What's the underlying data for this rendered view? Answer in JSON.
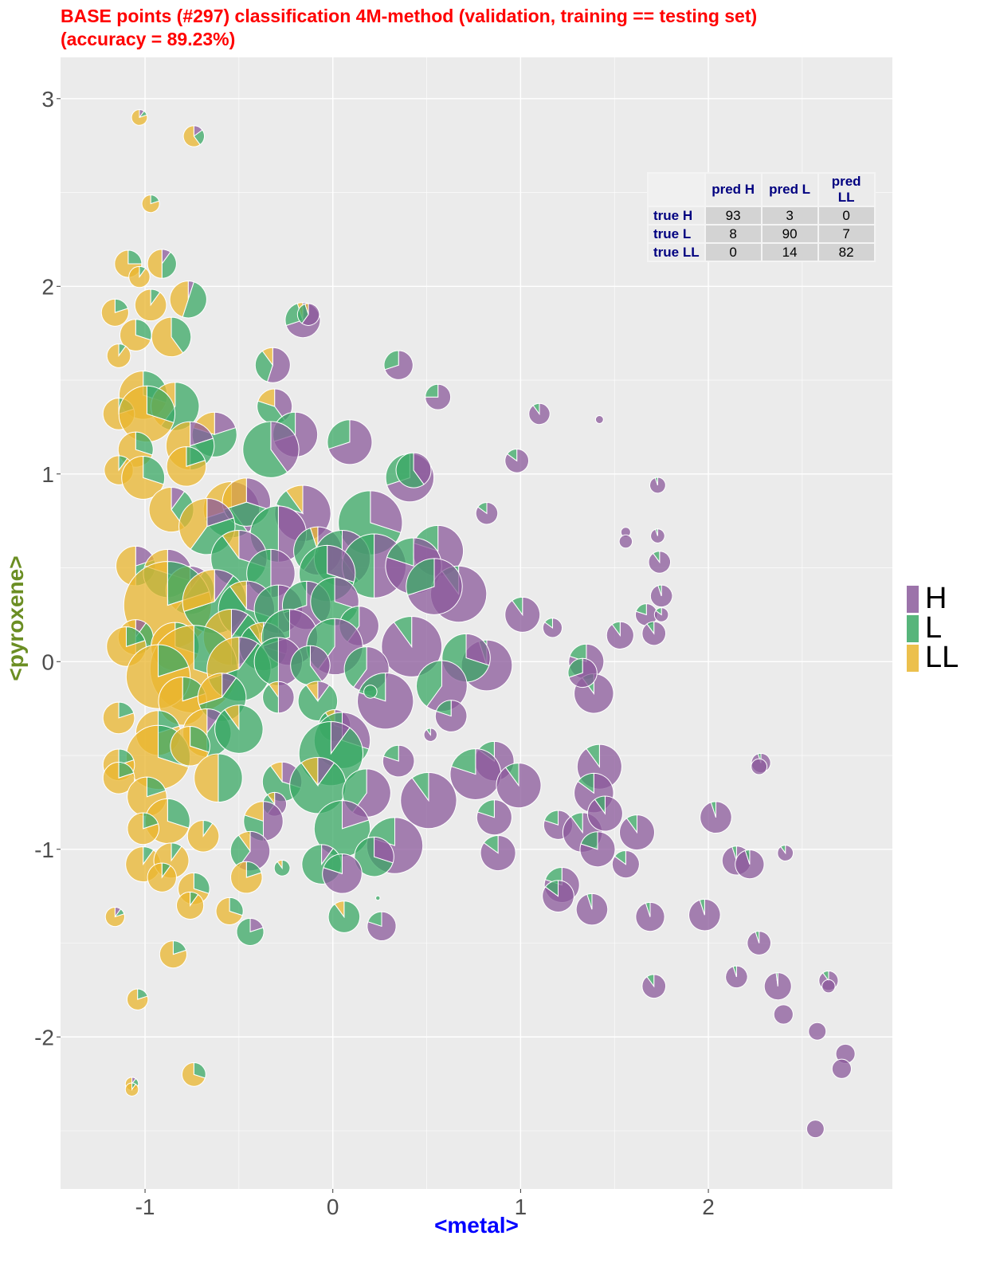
{
  "title": "BASE points (#297) classification 4M-method (validation, training == testing set)\n(accuracy = 89.23%)",
  "confusion_table": {
    "col_headers": [
      "pred H",
      "pred L",
      "pred LL"
    ],
    "rows": [
      {
        "label": "true H",
        "values": [
          "93",
          "3",
          "0"
        ]
      },
      {
        "label": "true L",
        "values": [
          "8",
          "90",
          "7"
        ]
      },
      {
        "label": "true LL",
        "values": [
          "0",
          "14",
          "82"
        ]
      }
    ]
  },
  "legend": {
    "items": [
      {
        "label": "H",
        "color": "#8b5a9b"
      },
      {
        "label": "L",
        "color": "#3aa864"
      },
      {
        "label": "LL",
        "color": "#e9b52e"
      }
    ]
  },
  "chart_data": {
    "type": "scatter",
    "marker": "pie",
    "pie_order": [
      "H",
      "L",
      "LL"
    ],
    "xlabel": "<metal>",
    "ylabel": "<pyroxene>",
    "xlim": [
      -1.45,
      2.98
    ],
    "ylim": [
      -2.81,
      3.22
    ],
    "xticks": [
      -1,
      0,
      1,
      2
    ],
    "yticks": [
      -2,
      -1,
      0,
      1,
      2,
      3
    ],
    "grid": true,
    "legend_position": "right",
    "columns": [
      "metal",
      "pyroxene",
      "size",
      "p_H",
      "p_L",
      "p_LL"
    ],
    "points": [
      [
        -1.03,
        2.9,
        0.18,
        0.1,
        0.1,
        0.8
      ],
      [
        -0.74,
        2.8,
        0.24,
        0.15,
        0.25,
        0.6
      ],
      [
        -0.97,
        2.44,
        0.2,
        0,
        0.2,
        0.8
      ],
      [
        -1.09,
        2.12,
        0.31,
        0,
        0.25,
        0.75
      ],
      [
        -0.91,
        2.12,
        0.33,
        0.1,
        0.4,
        0.5
      ],
      [
        -1.03,
        2.05,
        0.24,
        0,
        0.1,
        0.9
      ],
      [
        -0.77,
        1.93,
        0.42,
        0.05,
        0.5,
        0.45
      ],
      [
        -1.16,
        1.86,
        0.31,
        0,
        0.2,
        0.8
      ],
      [
        -0.97,
        1.9,
        0.36,
        0,
        0.1,
        0.9
      ],
      [
        -0.16,
        1.82,
        0.4,
        0.7,
        0.25,
        0.05
      ],
      [
        -0.13,
        1.85,
        0.25,
        0.6,
        0.35,
        0.05
      ],
      [
        -0.86,
        1.73,
        0.45,
        0,
        0.4,
        0.6
      ],
      [
        -1.05,
        1.74,
        0.36,
        0,
        0.3,
        0.7
      ],
      [
        -1.14,
        1.63,
        0.27,
        0,
        0.1,
        0.9
      ],
      [
        -0.32,
        1.58,
        0.4,
        0.55,
        0.35,
        0.1
      ],
      [
        0.35,
        1.58,
        0.33,
        0.7,
        0.3,
        0
      ],
      [
        -1.01,
        1.42,
        0.55,
        0,
        0.3,
        0.7
      ],
      [
        -0.84,
        1.36,
        0.55,
        0,
        0.6,
        0.4
      ],
      [
        -0.31,
        1.36,
        0.4,
        0.4,
        0.4,
        0.2
      ],
      [
        -1.14,
        1.32,
        0.36,
        0,
        0.2,
        0.8
      ],
      [
        0.56,
        1.41,
        0.29,
        0.75,
        0.25,
        0
      ],
      [
        -0.63,
        1.21,
        0.51,
        0.2,
        0.6,
        0.2
      ],
      [
        -0.99,
        1.32,
        0.64,
        0,
        0.3,
        0.7
      ],
      [
        -0.2,
        1.21,
        0.51,
        0.7,
        0.3,
        0
      ],
      [
        0.09,
        1.17,
        0.51,
        0.7,
        0.3,
        0
      ],
      [
        1.1,
        1.32,
        0.24,
        0.9,
        0.1,
        0
      ],
      [
        1.42,
        1.29,
        0.09,
        1,
        0,
        0
      ],
      [
        -1.05,
        1.13,
        0.4,
        0,
        0.3,
        0.7
      ],
      [
        -0.76,
        1.15,
        0.55,
        0.2,
        0.3,
        0.5
      ],
      [
        -0.33,
        1.13,
        0.64,
        0.4,
        0.6,
        0
      ],
      [
        0.98,
        1.07,
        0.27,
        0.85,
        0.15,
        0
      ],
      [
        -1.14,
        1.02,
        0.33,
        0,
        0.1,
        0.9
      ],
      [
        -1.01,
        0.98,
        0.49,
        0,
        0.3,
        0.7
      ],
      [
        0.41,
        0.98,
        0.55,
        0.7,
        0.3,
        0
      ],
      [
        0.43,
        1.02,
        0.4,
        0.4,
        0.6,
        0
      ],
      [
        -0.78,
        1.04,
        0.45,
        0,
        0.2,
        0.8
      ],
      [
        1.73,
        0.94,
        0.18,
        0.95,
        0.05,
        0
      ],
      [
        -0.86,
        0.81,
        0.51,
        0.1,
        0.3,
        0.6
      ],
      [
        -0.54,
        0.81,
        0.64,
        0.4,
        0.3,
        0.3
      ],
      [
        -0.46,
        0.85,
        0.55,
        0.3,
        0.4,
        0.3
      ],
      [
        -0.16,
        0.79,
        0.64,
        0.8,
        0.1,
        0.1
      ],
      [
        0.82,
        0.79,
        0.25,
        0.85,
        0.15,
        0
      ],
      [
        0.2,
        0.74,
        0.73,
        0.3,
        0.7,
        0
      ],
      [
        -0.67,
        0.72,
        0.64,
        0.2,
        0.4,
        0.4
      ],
      [
        1.56,
        0.69,
        0.11,
        1,
        0,
        0
      ],
      [
        1.56,
        0.64,
        0.15,
        1,
        0,
        0
      ],
      [
        1.73,
        0.67,
        0.16,
        0.95,
        0.05,
        0
      ],
      [
        -0.29,
        0.68,
        0.64,
        0.5,
        0.5,
        0
      ],
      [
        -0.08,
        0.59,
        0.55,
        0.6,
        0.35,
        0.05
      ],
      [
        0.56,
        0.59,
        0.58,
        0.8,
        0.2,
        0
      ],
      [
        -1.05,
        0.51,
        0.45,
        0.2,
        0.3,
        0.5
      ],
      [
        -0.88,
        0.47,
        0.55,
        0.3,
        0.5,
        0.2
      ],
      [
        -0.76,
        0.38,
        0.55,
        0.1,
        0.5,
        0.4
      ],
      [
        -0.5,
        0.55,
        0.64,
        0.3,
        0.6,
        0.1
      ],
      [
        -0.33,
        0.47,
        0.55,
        0.5,
        0.5,
        0
      ],
      [
        0.05,
        0.55,
        0.64,
        0.4,
        0.6,
        0
      ],
      [
        0.22,
        0.51,
        0.73,
        0.5,
        0.5,
        0
      ],
      [
        0.43,
        0.51,
        0.64,
        0.8,
        0.2,
        0
      ],
      [
        0.67,
        0.36,
        0.64,
        0.9,
        0.1,
        0
      ],
      [
        0.54,
        0.4,
        0.64,
        0.7,
        0.3,
        0
      ],
      [
        -0.03,
        0.47,
        0.64,
        0.3,
        0.7,
        0
      ],
      [
        1.74,
        0.53,
        0.25,
        0.9,
        0.1,
        0
      ],
      [
        -0.88,
        0.3,
        1.0,
        0,
        0.2,
        0.8
      ],
      [
        -0.63,
        0.32,
        0.73,
        0.1,
        0.6,
        0.3
      ],
      [
        -0.46,
        0.28,
        0.64,
        0.3,
        0.6,
        0.1
      ],
      [
        -0.29,
        0.28,
        0.55,
        0.5,
        0.5,
        0
      ],
      [
        -0.14,
        0.3,
        0.55,
        0.7,
        0.3,
        0
      ],
      [
        0.01,
        0.32,
        0.55,
        0.3,
        0.7,
        0
      ],
      [
        0.14,
        0.19,
        0.45,
        0.6,
        0.4,
        0
      ],
      [
        1.01,
        0.25,
        0.4,
        0.9,
        0.1,
        0
      ],
      [
        1.17,
        0.18,
        0.22,
        0.85,
        0.15,
        0
      ],
      [
        1.75,
        0.35,
        0.25,
        0.95,
        0.05,
        0
      ],
      [
        1.67,
        0.25,
        0.25,
        0.8,
        0.2,
        0
      ],
      [
        1.75,
        0.25,
        0.16,
        0.85,
        0.15,
        0
      ],
      [
        1.71,
        0.15,
        0.27,
        0.9,
        0.1,
        0
      ],
      [
        1.53,
        0.14,
        0.31,
        0.9,
        0.1,
        0
      ],
      [
        -1.05,
        0.13,
        0.4,
        0.1,
        0.4,
        0.5
      ],
      [
        -1.1,
        0.08,
        0.45,
        0,
        0.2,
        0.8
      ],
      [
        -0.84,
        0.08,
        0.55,
        0,
        0.3,
        0.7
      ],
      [
        -0.54,
        0.13,
        0.64,
        0.1,
        0.4,
        0.5
      ],
      [
        -0.37,
        0.08,
        0.55,
        0.3,
        0.6,
        0.1
      ],
      [
        -0.23,
        0.13,
        0.64,
        0.7,
        0.3,
        0
      ],
      [
        0.01,
        0.08,
        0.64,
        0.6,
        0.4,
        0
      ],
      [
        0.42,
        0.08,
        0.69,
        0.9,
        0.1,
        0
      ],
      [
        0.82,
        -0.02,
        0.58,
        0.95,
        0.05,
        0
      ],
      [
        0.71,
        0.02,
        0.55,
        0.3,
        0.7,
        0
      ],
      [
        1.35,
        0.0,
        0.4,
        0.8,
        0.2,
        0
      ],
      [
        -0.74,
        -0.04,
        1.0,
        0,
        0.3,
        0.7
      ],
      [
        -0.93,
        -0.08,
        0.73,
        0,
        0.2,
        0.8
      ],
      [
        -0.5,
        -0.04,
        0.73,
        0.1,
        0.6,
        0.3
      ],
      [
        -0.29,
        0.0,
        0.55,
        0.5,
        0.5,
        0
      ],
      [
        -0.12,
        -0.02,
        0.45,
        0.4,
        0.6,
        0
      ],
      [
        0.18,
        -0.04,
        0.51,
        0.6,
        0.4,
        0
      ],
      [
        0.58,
        -0.13,
        0.58,
        0.6,
        0.4,
        0
      ],
      [
        1.39,
        -0.17,
        0.45,
        0.9,
        0.1,
        0
      ],
      [
        1.33,
        -0.06,
        0.33,
        0.7,
        0.3,
        0
      ],
      [
        -1.14,
        -0.3,
        0.36,
        0,
        0.2,
        0.8
      ],
      [
        -0.8,
        -0.21,
        0.55,
        0,
        0.2,
        0.8
      ],
      [
        -0.59,
        -0.19,
        0.55,
        0.1,
        0.6,
        0.3
      ],
      [
        -0.29,
        -0.19,
        0.36,
        0.5,
        0.4,
        0.1
      ],
      [
        -0.08,
        -0.21,
        0.45,
        0.1,
        0.8,
        0.1
      ],
      [
        0.28,
        -0.21,
        0.64,
        0.8,
        0.2,
        0
      ],
      [
        0.63,
        -0.29,
        0.36,
        0.8,
        0.2,
        0
      ],
      [
        0.2,
        -0.16,
        0.15,
        0,
        1,
        0
      ],
      [
        -0.93,
        -0.38,
        0.51,
        0,
        0.2,
        0.8
      ],
      [
        -0.67,
        -0.38,
        0.55,
        0.1,
        0.4,
        0.5
      ],
      [
        -0.5,
        -0.36,
        0.55,
        0,
        0.9,
        0.1
      ],
      [
        0.01,
        -0.34,
        0.36,
        0.3,
        0.6,
        0.1
      ],
      [
        0.05,
        -0.42,
        0.64,
        0.3,
        0.7,
        0
      ],
      [
        0.52,
        -0.39,
        0.15,
        0.9,
        0.1,
        0
      ],
      [
        -0.93,
        -0.51,
        0.73,
        0,
        0.3,
        0.7
      ],
      [
        -0.76,
        -0.45,
        0.45,
        0,
        0.3,
        0.7
      ],
      [
        -0.61,
        -0.62,
        0.55,
        0,
        0.5,
        0.5
      ],
      [
        -0.01,
        -0.49,
        0.73,
        0.1,
        0.9,
        0
      ],
      [
        0.35,
        -0.53,
        0.36,
        0.8,
        0.2,
        0
      ],
      [
        1.42,
        -0.56,
        0.51,
        0.9,
        0.1,
        0
      ],
      [
        0.86,
        -0.53,
        0.45,
        0.85,
        0.15,
        0
      ],
      [
        -1.14,
        -0.55,
        0.36,
        0,
        0.2,
        0.8
      ],
      [
        -1.14,
        -0.62,
        0.36,
        0,
        0.2,
        0.8
      ],
      [
        -0.27,
        -0.64,
        0.45,
        0.3,
        0.6,
        0.1
      ],
      [
        -0.08,
        -0.66,
        0.64,
        0.1,
        0.8,
        0.1
      ],
      [
        0.18,
        -0.7,
        0.55,
        0.6,
        0.4,
        0
      ],
      [
        0.51,
        -0.74,
        0.64,
        0.9,
        0.1,
        0
      ],
      [
        0.76,
        -0.6,
        0.58,
        0.8,
        0.2,
        0
      ],
      [
        0.99,
        -0.66,
        0.51,
        0.9,
        0.1,
        0
      ],
      [
        1.39,
        -0.7,
        0.45,
        0.85,
        0.15,
        0
      ],
      [
        -0.99,
        -0.72,
        0.45,
        0,
        0.2,
        0.8
      ],
      [
        -0.88,
        -0.85,
        0.51,
        0,
        0.3,
        0.7
      ],
      [
        -0.31,
        -0.76,
        0.27,
        0.6,
        0.3,
        0.1
      ],
      [
        -0.37,
        -0.85,
        0.45,
        0.5,
        0.3,
        0.2
      ],
      [
        0.05,
        -0.89,
        0.64,
        0.2,
        0.8,
        0
      ],
      [
        0.86,
        -0.83,
        0.4,
        0.8,
        0.2,
        0
      ],
      [
        1.2,
        -0.87,
        0.33,
        0.8,
        0.2,
        0
      ],
      [
        1.33,
        -0.91,
        0.45,
        0.9,
        0.1,
        0
      ],
      [
        1.45,
        -0.81,
        0.4,
        0.9,
        0.1,
        0
      ],
      [
        1.62,
        -0.91,
        0.4,
        0.9,
        0.1,
        0
      ],
      [
        2.04,
        -0.83,
        0.36,
        0.95,
        0.05,
        0
      ],
      [
        -1.01,
        -0.89,
        0.36,
        0,
        0.2,
        0.8
      ],
      [
        -0.69,
        -0.93,
        0.36,
        0,
        0.1,
        0.9
      ],
      [
        -0.44,
        -1.01,
        0.45,
        0.6,
        0.3,
        0.1
      ],
      [
        0.33,
        -0.98,
        0.64,
        0.8,
        0.2,
        0
      ],
      [
        0.22,
        -1.04,
        0.45,
        0.3,
        0.7,
        0
      ],
      [
        0.88,
        -1.02,
        0.4,
        0.85,
        0.15,
        0
      ],
      [
        1.41,
        -1.0,
        0.4,
        0.8,
        0.2,
        0
      ],
      [
        -1.01,
        -1.08,
        0.4,
        0,
        0.1,
        0.9
      ],
      [
        -0.86,
        -1.06,
        0.4,
        0,
        0.1,
        0.9
      ],
      [
        -0.27,
        -1.1,
        0.18,
        0,
        0.9,
        0.1
      ],
      [
        -0.06,
        -1.08,
        0.45,
        0.1,
        0.9,
        0
      ],
      [
        0.05,
        -1.13,
        0.45,
        0.8,
        0.2,
        0
      ],
      [
        1.56,
        -1.08,
        0.31,
        0.85,
        0.15,
        0
      ],
      [
        2.15,
        -1.06,
        0.33,
        0.95,
        0.05,
        0
      ],
      [
        2.22,
        -1.08,
        0.33,
        0.95,
        0.05,
        0
      ],
      [
        2.41,
        -1.02,
        0.18,
        0.9,
        0.1,
        0
      ],
      [
        -0.46,
        -1.15,
        0.36,
        0,
        0.2,
        0.8
      ],
      [
        -0.91,
        -1.15,
        0.33,
        0,
        0.1,
        0.9
      ],
      [
        1.22,
        -1.19,
        0.4,
        0.8,
        0.2,
        0
      ],
      [
        1.2,
        -1.25,
        0.36,
        0.85,
        0.15,
        0
      ],
      [
        -0.74,
        -1.21,
        0.36,
        0,
        0.3,
        0.7
      ],
      [
        -0.44,
        -1.44,
        0.31,
        0.2,
        0.8,
        0
      ],
      [
        -1.16,
        -1.36,
        0.22,
        0.1,
        0.1,
        0.8
      ],
      [
        -0.76,
        -1.3,
        0.31,
        0,
        0.1,
        0.9
      ],
      [
        -0.55,
        -1.33,
        0.31,
        0,
        0.3,
        0.7
      ],
      [
        0.06,
        -1.36,
        0.36,
        0,
        0.9,
        0.1
      ],
      [
        0.26,
        -1.41,
        0.33,
        0.8,
        0.2,
        0
      ],
      [
        1.38,
        -1.32,
        0.36,
        0.95,
        0.05,
        0
      ],
      [
        1.69,
        -1.36,
        0.33,
        0.95,
        0.05,
        0
      ],
      [
        1.98,
        -1.35,
        0.36,
        0.95,
        0.05,
        0
      ],
      [
        0.24,
        -1.26,
        0.05,
        0,
        1,
        0
      ],
      [
        -0.85,
        -1.56,
        0.31,
        0,
        0.2,
        0.8
      ],
      [
        2.27,
        -1.5,
        0.27,
        0.95,
        0.05,
        0
      ],
      [
        2.15,
        -1.68,
        0.25,
        0.95,
        0.05,
        0
      ],
      [
        2.37,
        -1.73,
        0.31,
        0.98,
        0.02,
        0
      ],
      [
        1.71,
        -1.73,
        0.27,
        0.9,
        0.1,
        0
      ],
      [
        2.64,
        -1.7,
        0.22,
        0.9,
        0.1,
        0
      ],
      [
        2.64,
        -1.73,
        0.15,
        1,
        0,
        0
      ],
      [
        -1.04,
        -1.8,
        0.24,
        0,
        0.2,
        0.8
      ],
      [
        2.4,
        -1.88,
        0.22,
        1,
        0,
        0
      ],
      [
        2.58,
        -1.97,
        0.2,
        1,
        0,
        0
      ],
      [
        2.73,
        -2.09,
        0.22,
        1,
        0,
        0
      ],
      [
        2.71,
        -2.17,
        0.22,
        1,
        0,
        0
      ],
      [
        -0.74,
        -2.2,
        0.27,
        0,
        0.3,
        0.7
      ],
      [
        -1.07,
        -2.25,
        0.15,
        0.1,
        0.2,
        0.7
      ],
      [
        -1.07,
        -2.28,
        0.15,
        0,
        0.1,
        0.9
      ],
      [
        2.57,
        -2.49,
        0.2,
        1,
        0,
        0
      ],
      [
        2.28,
        -0.54,
        0.22,
        0.95,
        0.05,
        0
      ],
      [
        2.27,
        -0.56,
        0.18,
        1,
        0,
        0
      ]
    ]
  }
}
